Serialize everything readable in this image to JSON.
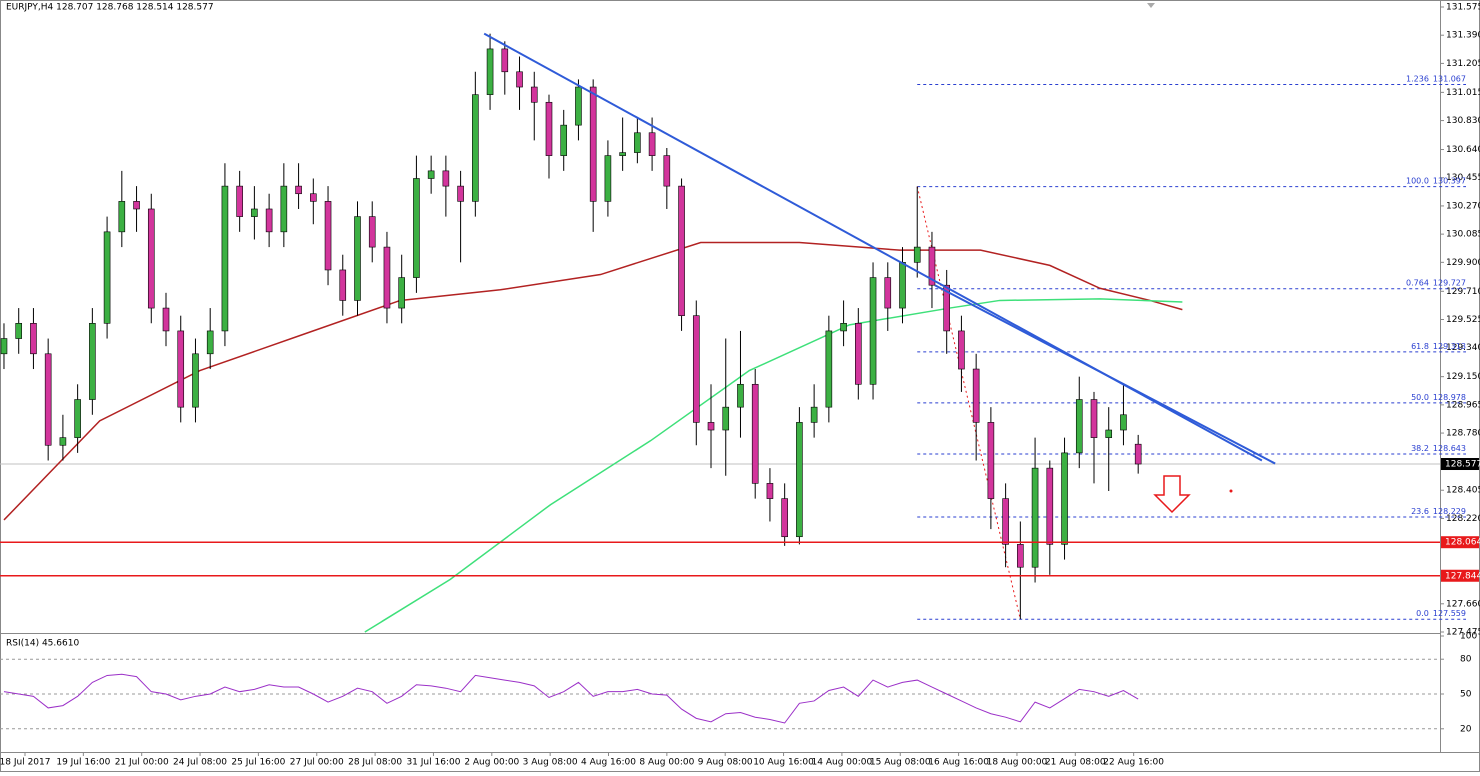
{
  "chart_data": [
    {
      "type": "candlestick",
      "title": "EURJPY,H4  128.707 128.768 128.514 128.577",
      "bull_color": "#3cb043",
      "bear_color": "#d2359c",
      "xlim": [
        -0.27,
        97.49
      ],
      "ylim": [
        127.475,
        131.575
      ],
      "yticks": [
        131.575,
        {
          "value": 131.39,
          "label": "131.390"
        },
        131.205,
        131.015,
        {
          "value": 130.83,
          "label": "130.830"
        },
        {
          "value": 130.64,
          "label": "130.640"
        },
        130.455,
        {
          "value": 130.27,
          "label": "130.270"
        },
        130.085,
        {
          "value": 129.9,
          "label": "129.900"
        },
        {
          "value": 129.71,
          "label": "129.710"
        },
        129.525,
        {
          "value": 129.34,
          "label": "129.340"
        },
        {
          "value": 129.15,
          "label": "129.150"
        },
        128.965,
        {
          "value": 128.78,
          "label": "128.780"
        },
        128.405,
        {
          "value": 128.22,
          "label": "128.220"
        },
        {
          "value": 127.66,
          "label": "127.660"
        },
        127.475
      ],
      "candles": [
        [
          129.3,
          129.5,
          129.2,
          129.4
        ],
        [
          129.4,
          129.6,
          129.3,
          129.5
        ],
        [
          129.5,
          129.6,
          129.2,
          129.3
        ],
        [
          129.3,
          129.4,
          128.6,
          128.7
        ],
        [
          128.7,
          128.9,
          128.6,
          128.75
        ],
        [
          128.75,
          129.1,
          128.65,
          129.0
        ],
        [
          129.0,
          129.6,
          128.9,
          129.5
        ],
        [
          129.5,
          130.2,
          129.4,
          130.1
        ],
        [
          130.1,
          130.5,
          130.0,
          130.3
        ],
        [
          130.3,
          130.4,
          130.1,
          130.25
        ],
        [
          130.25,
          130.35,
          129.5,
          129.6
        ],
        [
          129.6,
          129.7,
          129.35,
          129.45
        ],
        [
          129.45,
          129.55,
          128.85,
          128.95
        ],
        [
          128.95,
          129.4,
          128.85,
          129.3
        ],
        [
          129.3,
          129.6,
          129.2,
          129.45
        ],
        [
          129.45,
          130.55,
          129.35,
          130.4
        ],
        [
          130.4,
          130.5,
          130.1,
          130.2
        ],
        [
          130.2,
          130.4,
          130.05,
          130.25
        ],
        [
          130.25,
          130.35,
          130.0,
          130.1
        ],
        [
          130.1,
          130.55,
          130.0,
          130.4
        ],
        [
          130.4,
          130.55,
          130.25,
          130.35
        ],
        [
          130.35,
          130.45,
          130.15,
          130.3
        ],
        [
          130.3,
          130.4,
          129.75,
          129.85
        ],
        [
          129.85,
          129.95,
          129.55,
          129.65
        ],
        [
          129.65,
          130.3,
          129.55,
          130.2
        ],
        [
          130.2,
          130.3,
          129.9,
          130.0
        ],
        [
          130.0,
          130.1,
          129.5,
          129.6
        ],
        [
          129.6,
          129.95,
          129.5,
          129.8
        ],
        [
          129.8,
          130.6,
          129.7,
          130.45
        ],
        [
          130.45,
          130.6,
          130.35,
          130.5
        ],
        [
          130.5,
          130.6,
          130.2,
          130.4
        ],
        [
          130.4,
          130.5,
          129.9,
          130.3
        ],
        [
          130.3,
          131.15,
          130.2,
          131.0
        ],
        [
          131.0,
          131.4,
          130.9,
          131.3
        ],
        [
          131.3,
          131.35,
          131.0,
          131.15
        ],
        [
          131.15,
          131.25,
          130.9,
          131.05
        ],
        [
          131.05,
          131.15,
          130.7,
          130.95
        ],
        [
          130.95,
          131.0,
          130.45,
          130.6
        ],
        [
          130.6,
          130.9,
          130.5,
          130.8
        ],
        [
          130.8,
          131.1,
          130.7,
          131.05
        ],
        [
          131.05,
          131.1,
          130.1,
          130.3
        ],
        [
          130.3,
          130.7,
          130.2,
          130.6
        ],
        [
          130.6,
          130.85,
          130.5,
          130.62
        ],
        [
          130.62,
          130.85,
          130.55,
          130.75
        ],
        [
          130.75,
          130.85,
          130.5,
          130.6
        ],
        [
          130.6,
          130.65,
          130.25,
          130.4
        ],
        [
          130.4,
          130.45,
          129.45,
          129.55
        ],
        [
          129.55,
          129.65,
          128.7,
          128.85
        ],
        [
          128.85,
          129.1,
          128.55,
          128.8
        ],
        [
          128.8,
          129.4,
          128.5,
          128.95
        ],
        [
          128.95,
          129.45,
          128.75,
          129.1
        ],
        [
          129.1,
          129.2,
          128.35,
          128.45
        ],
        [
          128.45,
          128.55,
          128.2,
          128.35
        ],
        [
          128.35,
          128.45,
          128.04,
          128.1
        ],
        [
          128.1,
          128.95,
          128.05,
          128.85
        ],
        [
          128.85,
          129.1,
          128.75,
          128.95
        ],
        [
          128.95,
          129.55,
          128.85,
          129.45
        ],
        [
          129.45,
          129.65,
          129.35,
          129.5
        ],
        [
          129.5,
          129.6,
          129.0,
          129.1
        ],
        [
          129.1,
          129.9,
          129.0,
          129.8
        ],
        [
          129.8,
          129.9,
          129.45,
          129.6
        ],
        [
          129.6,
          130.0,
          129.5,
          129.9
        ],
        [
          129.9,
          130.397,
          129.8,
          130.0
        ],
        [
          130.0,
          130.1,
          129.6,
          129.75
        ],
        [
          129.75,
          129.85,
          129.3,
          129.45
        ],
        [
          129.45,
          129.55,
          129.05,
          129.2
        ],
        [
          129.2,
          129.3,
          128.6,
          128.85
        ],
        [
          128.85,
          128.95,
          128.15,
          128.35
        ],
        [
          128.35,
          128.45,
          127.9,
          128.05
        ],
        [
          128.05,
          128.2,
          127.559,
          127.9
        ],
        [
          127.9,
          128.75,
          127.8,
          128.55
        ],
        [
          128.55,
          128.6,
          127.85,
          128.05
        ],
        [
          128.05,
          128.75,
          127.95,
          128.65
        ],
        [
          128.65,
          129.15,
          128.55,
          129.0
        ],
        [
          129.0,
          129.05,
          128.45,
          128.75
        ],
        [
          128.75,
          128.95,
          128.4,
          128.8
        ],
        [
          128.8,
          129.1,
          128.7,
          128.9
        ],
        [
          128.707,
          128.768,
          128.514,
          128.577
        ]
      ],
      "current_price": 128.577,
      "hlines": [
        {
          "value": 128.064,
          "color": "#e8191b"
        },
        {
          "value": 127.844,
          "color": "#e8191b"
        }
      ],
      "fib_color": "#2a3fd0",
      "fib_levels": [
        {
          "ratio": "1.236",
          "value": 131.067
        },
        {
          "ratio": "100.0",
          "value": 130.397
        },
        {
          "ratio": "0.764",
          "value": 129.727
        },
        {
          "ratio": "61.8",
          "value": 129.313
        },
        {
          "ratio": "50.0",
          "value": 128.978
        },
        {
          "ratio": "38.2",
          "value": 128.643
        },
        {
          "ratio": "23.6",
          "value": 128.229
        },
        {
          "ratio": "0.0",
          "value": 127.559
        }
      ],
      "moving_averages": [
        {
          "color": "#b22222",
          "x": [
            0,
            6.5,
            13.3,
            20.1,
            26.9,
            33.7,
            40.5,
            47.3,
            54.0,
            60.8,
            66.3,
            71.0,
            74.4,
            77.8,
            80.0
          ],
          "values": [
            128.21,
            128.86,
            129.19,
            129.42,
            129.65,
            129.72,
            129.82,
            130.03,
            130.03,
            129.98,
            129.98,
            129.88,
            129.73,
            129.65,
            129.59
          ]
        },
        {
          "color": "#3ee07a",
          "x": [
            24.5,
            30.3,
            37.1,
            43.9,
            50.6,
            57.4,
            64.2,
            67.6,
            74.4,
            80.0
          ],
          "values": [
            127.475,
            127.82,
            128.31,
            128.73,
            129.19,
            129.49,
            129.6,
            129.65,
            129.66,
            129.64
          ]
        }
      ],
      "trendlines": [
        {
          "color": "#2f5bd8",
          "x": [
            32.6,
            85.4
          ],
          "values": [
            131.4,
            128.6
          ]
        },
        {
          "color": "#2f5bd8",
          "x": [
            63.2,
            86.3
          ],
          "values": [
            129.75,
            128.58
          ]
        }
      ],
      "x_labels": [
        "18 Jul 2017",
        "19 Jul 16:00",
        "21 Jul 00:00",
        "24 Jul 08:00",
        "25 Jul 16:00",
        "27 Jul 00:00",
        "28 Jul 08:00",
        "31 Jul 16:00",
        "2 Aug 00:00",
        "3 Aug 08:00",
        "4 Aug 16:00",
        "8 Aug 00:00",
        "9 Aug 08:00",
        "10 Aug 16:00",
        "14 Aug 00:00",
        "15 Aug 08:00",
        "16 Aug 16:00",
        "18 Aug 00:00",
        "21 Aug 08:00",
        "22 Aug 16:00"
      ]
    },
    {
      "type": "line",
      "title": "RSI(14) 45.6610",
      "color": "#9b30c8",
      "ylim": [
        0,
        100
      ],
      "yticks": [
        100,
        80,
        50,
        20
      ],
      "values": [
        52,
        50,
        48,
        38,
        40,
        48,
        60,
        66,
        67,
        65,
        52,
        50,
        45,
        48,
        50,
        56,
        52,
        54,
        58,
        56,
        56,
        50,
        43,
        48,
        55,
        52,
        42,
        48,
        58,
        57,
        55,
        52,
        66,
        64,
        62,
        60,
        57,
        47,
        52,
        60,
        48,
        52,
        52,
        54,
        50,
        49,
        37,
        29,
        26,
        33,
        34,
        30,
        28,
        25,
        42,
        44,
        53,
        56,
        48,
        62,
        56,
        60,
        62,
        56,
        50,
        44,
        38,
        33,
        30,
        26,
        43,
        38,
        46,
        54,
        52,
        48,
        53,
        45.661
      ]
    }
  ]
}
